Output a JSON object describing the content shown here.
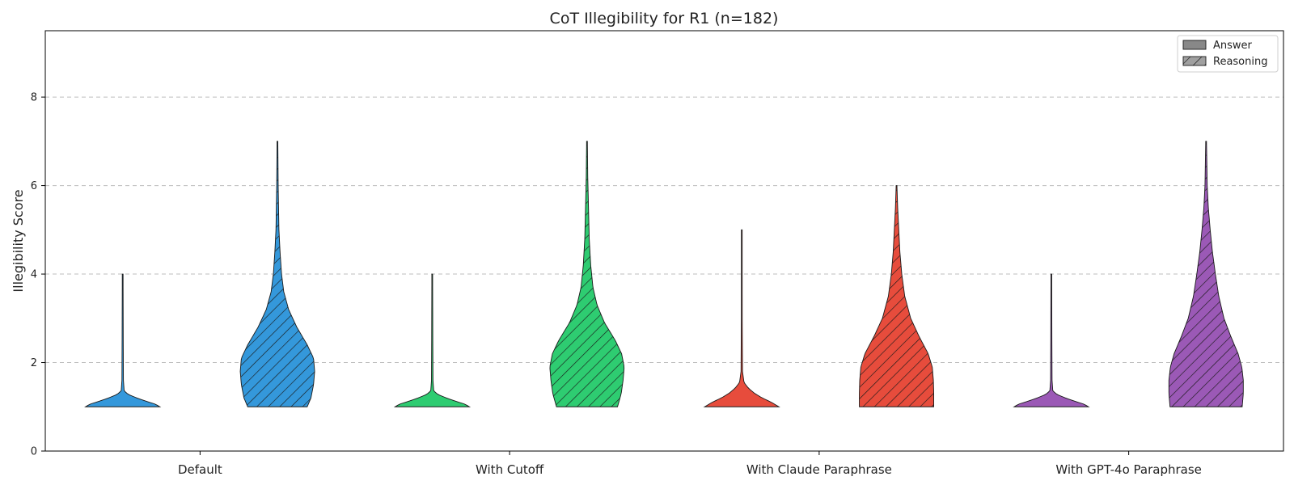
{
  "chart_data": {
    "type": "violin",
    "title": "CoT Illegibility for R1 (n=182)",
    "xlabel": "",
    "ylabel": "Illegibility Score",
    "ylim": [
      0,
      9.5
    ],
    "yticks": [
      0,
      2,
      4,
      6,
      8
    ],
    "grid": "horizontal dashed",
    "legend_position": "top-right",
    "legend": [
      {
        "label": "Answer",
        "pattern": "solid"
      },
      {
        "label": "Reasoning",
        "pattern": "hatched"
      }
    ],
    "groups": [
      {
        "name": "Default",
        "color": "#3498db",
        "answer": {
          "min": 1,
          "max": 4,
          "profile": [
            [
              1.0,
              1.0
            ],
            [
              1.06,
              0.88
            ],
            [
              1.12,
              0.65
            ],
            [
              1.2,
              0.38
            ],
            [
              1.28,
              0.15
            ],
            [
              1.36,
              0.04
            ],
            [
              1.6,
              0.02
            ],
            [
              2.5,
              0.015
            ],
            [
              4.0,
              0.01
            ]
          ]
        },
        "reasoning": {
          "min": 1,
          "max": 7,
          "profile": [
            [
              1.0,
              0.8
            ],
            [
              1.2,
              0.9
            ],
            [
              1.5,
              0.97
            ],
            [
              1.8,
              1.0
            ],
            [
              2.1,
              0.97
            ],
            [
              2.4,
              0.8
            ],
            [
              2.8,
              0.52
            ],
            [
              3.2,
              0.3
            ],
            [
              3.6,
              0.17
            ],
            [
              4.0,
              0.11
            ],
            [
              4.5,
              0.07
            ],
            [
              5.0,
              0.04
            ],
            [
              6.0,
              0.02
            ],
            [
              7.0,
              0.01
            ]
          ]
        }
      },
      {
        "name": "With Cutoff",
        "color": "#2ecc71",
        "answer": {
          "min": 1,
          "max": 4,
          "profile": [
            [
              1.0,
              1.0
            ],
            [
              1.06,
              0.88
            ],
            [
              1.12,
              0.65
            ],
            [
              1.2,
              0.38
            ],
            [
              1.28,
              0.15
            ],
            [
              1.36,
              0.04
            ],
            [
              1.6,
              0.02
            ],
            [
              2.5,
              0.015
            ],
            [
              4.0,
              0.01
            ]
          ]
        },
        "reasoning": {
          "min": 1,
          "max": 7,
          "profile": [
            [
              1.0,
              0.82
            ],
            [
              1.3,
              0.92
            ],
            [
              1.6,
              0.97
            ],
            [
              1.9,
              1.0
            ],
            [
              2.2,
              0.93
            ],
            [
              2.5,
              0.76
            ],
            [
              2.9,
              0.47
            ],
            [
              3.3,
              0.27
            ],
            [
              3.7,
              0.16
            ],
            [
              4.2,
              0.1
            ],
            [
              4.8,
              0.06
            ],
            [
              5.5,
              0.04
            ],
            [
              6.2,
              0.02
            ],
            [
              7.0,
              0.01
            ]
          ]
        }
      },
      {
        "name": "With Claude Paraphrase",
        "color": "#e74c3c",
        "answer": {
          "min": 1,
          "max": 5,
          "profile": [
            [
              1.0,
              1.0
            ],
            [
              1.1,
              0.8
            ],
            [
              1.2,
              0.55
            ],
            [
              1.3,
              0.35
            ],
            [
              1.42,
              0.18
            ],
            [
              1.55,
              0.06
            ],
            [
              1.8,
              0.02
            ],
            [
              3.0,
              0.012
            ],
            [
              5.0,
              0.01
            ]
          ]
        },
        "reasoning": {
          "min": 1,
          "max": 6,
          "profile": [
            [
              1.0,
              1.0
            ],
            [
              1.3,
              1.0
            ],
            [
              1.6,
              0.99
            ],
            [
              1.9,
              0.96
            ],
            [
              2.2,
              0.85
            ],
            [
              2.6,
              0.6
            ],
            [
              3.0,
              0.38
            ],
            [
              3.5,
              0.22
            ],
            [
              4.0,
              0.14
            ],
            [
              4.5,
              0.09
            ],
            [
              5.0,
              0.06
            ],
            [
              5.5,
              0.03
            ],
            [
              6.0,
              0.01
            ]
          ]
        }
      },
      {
        "name": "With GPT-4o Paraphrase",
        "color": "#9b59b6",
        "answer": {
          "min": 1,
          "max": 4,
          "profile": [
            [
              1.0,
              1.0
            ],
            [
              1.06,
              0.88
            ],
            [
              1.12,
              0.65
            ],
            [
              1.2,
              0.38
            ],
            [
              1.28,
              0.15
            ],
            [
              1.36,
              0.04
            ],
            [
              1.6,
              0.02
            ],
            [
              2.5,
              0.015
            ],
            [
              4.0,
              0.01
            ]
          ]
        },
        "reasoning": {
          "min": 1,
          "max": 7,
          "profile": [
            [
              1.0,
              0.97
            ],
            [
              1.3,
              1.0
            ],
            [
              1.6,
              1.0
            ],
            [
              1.9,
              0.96
            ],
            [
              2.2,
              0.86
            ],
            [
              2.6,
              0.66
            ],
            [
              3.0,
              0.48
            ],
            [
              3.5,
              0.34
            ],
            [
              4.0,
              0.25
            ],
            [
              4.5,
              0.17
            ],
            [
              5.0,
              0.11
            ],
            [
              5.5,
              0.06
            ],
            [
              6.0,
              0.03
            ],
            [
              7.0,
              0.01
            ]
          ]
        }
      }
    ]
  }
}
